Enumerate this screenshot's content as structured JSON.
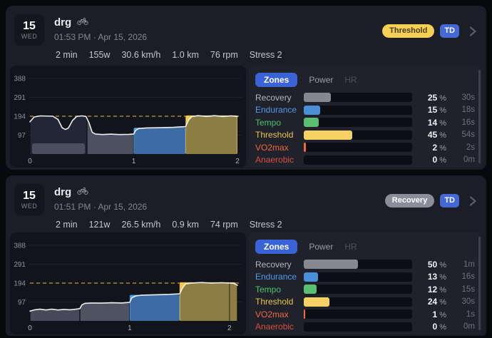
{
  "cards": [
    {
      "date": {
        "day": "15",
        "weekday": "WED"
      },
      "title": "drg",
      "activity_icon": "bicycle-icon",
      "subtitle": "01:53 PM · Apr 15, 2026",
      "badges": [
        {
          "label": "Threshold",
          "bg": "#f6cf55",
          "color": "#4c3d0d"
        },
        {
          "label": "TD",
          "bg": "#4468d6",
          "color": "#ffffff"
        }
      ],
      "stats": [
        "2 min",
        "155w",
        "30.6 km/h",
        "1.0 km",
        "76 rpm",
        "Stress 2"
      ],
      "tabs": [
        {
          "label": "Zones",
          "active": true
        },
        {
          "label": "Power",
          "active": false
        },
        {
          "label": "HR",
          "active": false,
          "enabled": false
        }
      ],
      "zones": [
        {
          "name": "Recovery",
          "label_color": "#b4b7bd",
          "bar_color": "#85888f",
          "pct": 25,
          "time": "30s"
        },
        {
          "name": "Endurance",
          "label_color": "#4f9ce8",
          "bar_color": "#4a90d9",
          "pct": 15,
          "time": "18s"
        },
        {
          "name": "Tempo",
          "label_color": "#4cc46a",
          "bar_color": "#5abf70",
          "pct": 14,
          "time": "16s"
        },
        {
          "name": "Threshold",
          "label_color": "#e8c84a",
          "bar_color": "#f5d263",
          "pct": 45,
          "time": "54s"
        },
        {
          "name": "VO2max",
          "label_color": "#f2683a",
          "bar_color": "#f06a3d",
          "pct": 2,
          "time": "2s"
        },
        {
          "name": "Anaerobic",
          "label_color": "#d94f3f",
          "bar_color": "#d94f3f",
          "pct": 0,
          "time": "0m"
        }
      ]
    },
    {
      "date": {
        "day": "15",
        "weekday": "WED"
      },
      "title": "drg",
      "activity_icon": "bicycle-icon",
      "subtitle": "01:51 PM · Apr 15, 2026",
      "badges": [
        {
          "label": "Recovery",
          "bg": "#8a8e98",
          "color": "#ffffff"
        },
        {
          "label": "TD",
          "bg": "#4468d6",
          "color": "#ffffff"
        }
      ],
      "stats": [
        "2 min",
        "121w",
        "26.5 km/h",
        "0.9 km",
        "74 rpm",
        "Stress 2"
      ],
      "tabs": [
        {
          "label": "Zones",
          "active": true
        },
        {
          "label": "Power",
          "active": false
        },
        {
          "label": "HR",
          "active": false,
          "enabled": false
        }
      ],
      "zones": [
        {
          "name": "Recovery",
          "label_color": "#b4b7bd",
          "bar_color": "#85888f",
          "pct": 50,
          "time": "1m"
        },
        {
          "name": "Endurance",
          "label_color": "#4f9ce8",
          "bar_color": "#4a90d9",
          "pct": 13,
          "time": "16s"
        },
        {
          "name": "Tempo",
          "label_color": "#4cc46a",
          "bar_color": "#5abf70",
          "pct": 12,
          "time": "15s"
        },
        {
          "name": "Threshold",
          "label_color": "#e8c84a",
          "bar_color": "#f5d263",
          "pct": 24,
          "time": "30s"
        },
        {
          "name": "VO2max",
          "label_color": "#f2683a",
          "bar_color": "#f06a3d",
          "pct": 1,
          "time": "1s"
        },
        {
          "name": "Anaerobic",
          "label_color": "#d94f3f",
          "bar_color": "#d94f3f",
          "pct": 0,
          "time": "0m"
        }
      ]
    }
  ],
  "chart_data": [
    {
      "type": "area",
      "x_unit": "min",
      "y_unit": "watts",
      "xlim": [
        0,
        2.0
      ],
      "ylim": [
        0,
        430
      ],
      "x_ticks": [
        0,
        1,
        2
      ],
      "y_ticks": [
        97,
        194,
        291,
        388
      ],
      "threshold": 194,
      "threshold_color": "#a8862e",
      "line_color": "#eceef0",
      "end_marker": null,
      "planned_under": [
        {
          "x0": 1.0,
          "x1": 1.5,
          "power": 135,
          "color": "#4da1e8"
        },
        {
          "x0": 1.5,
          "x1": 2.0,
          "power": 198,
          "color": "#f5c64c"
        }
      ],
      "planned_over": [
        {
          "x0": 0.02,
          "x1": 0.53,
          "power": 55,
          "color": "#4a4f5e"
        }
      ],
      "segments": [
        {
          "x0": 0,
          "x1": 0.55,
          "color": "#222636",
          "zone": "unclassified"
        },
        {
          "x0": 0.55,
          "x1": 1.0,
          "color": "#4d515f",
          "zone": "recovery"
        },
        {
          "x0": 1.0,
          "x1": 1.5,
          "color": "#3d6ba4",
          "zone": "endurance"
        },
        {
          "x0": 1.5,
          "x1": 2.0,
          "color": "#8c7d43",
          "zone": "threshold"
        }
      ],
      "line": [
        [
          0,
          165
        ],
        [
          0.04,
          190
        ],
        [
          0.1,
          196
        ],
        [
          0.22,
          194
        ],
        [
          0.27,
          178
        ],
        [
          0.31,
          135
        ],
        [
          0.34,
          126
        ],
        [
          0.37,
          133
        ],
        [
          0.41,
          172
        ],
        [
          0.45,
          193
        ],
        [
          0.5,
          196
        ],
        [
          0.54,
          193
        ],
        [
          0.57,
          160
        ],
        [
          0.6,
          112
        ],
        [
          0.63,
          103
        ],
        [
          0.7,
          100
        ],
        [
          0.78,
          102
        ],
        [
          0.86,
          100
        ],
        [
          0.95,
          101
        ],
        [
          1.0,
          103
        ],
        [
          1.02,
          122
        ],
        [
          1.05,
          131
        ],
        [
          1.12,
          134
        ],
        [
          1.25,
          135
        ],
        [
          1.38,
          137
        ],
        [
          1.5,
          141
        ],
        [
          1.53,
          175
        ],
        [
          1.56,
          192
        ],
        [
          1.62,
          197
        ],
        [
          1.7,
          193
        ],
        [
          1.78,
          197
        ],
        [
          1.86,
          192
        ],
        [
          1.94,
          196
        ],
        [
          2.0,
          193
        ]
      ]
    },
    {
      "type": "area",
      "x_unit": "min",
      "y_unit": "watts",
      "xlim": [
        0,
        2.08
      ],
      "ylim": [
        0,
        430
      ],
      "x_ticks": [
        0,
        1,
        2
      ],
      "y_ticks": [
        97,
        194,
        291,
        388
      ],
      "threshold": 194,
      "threshold_color": "#a8862e",
      "line_color": "#eceef0",
      "end_marker": 2.0,
      "planned_under": [
        {
          "x0": 1.0,
          "x1": 1.5,
          "power": 133,
          "color": "#4da1e8"
        },
        {
          "x0": 1.5,
          "x1": 2.06,
          "power": 198,
          "color": "#f5c64c"
        }
      ],
      "planned_over": [],
      "segments": [
        {
          "x0": 0,
          "x1": 0.5,
          "color": "#474b59",
          "zone": "recovery"
        },
        {
          "x0": 0.5,
          "x1": 1.0,
          "color": "#4f5361",
          "zone": "recovery"
        },
        {
          "x0": 1.0,
          "x1": 1.5,
          "color": "#3d6ba4",
          "zone": "endurance"
        },
        {
          "x0": 1.5,
          "x1": 2.08,
          "color": "#8c7d43",
          "zone": "threshold"
        }
      ],
      "line": [
        [
          0,
          50
        ],
        [
          0.05,
          57
        ],
        [
          0.1,
          60
        ],
        [
          0.16,
          56
        ],
        [
          0.22,
          60
        ],
        [
          0.28,
          56
        ],
        [
          0.34,
          59
        ],
        [
          0.4,
          57
        ],
        [
          0.46,
          60
        ],
        [
          0.5,
          63
        ],
        [
          0.52,
          82
        ],
        [
          0.55,
          90
        ],
        [
          0.62,
          92
        ],
        [
          0.72,
          91
        ],
        [
          0.82,
          93
        ],
        [
          0.92,
          92
        ],
        [
          1.0,
          95
        ],
        [
          1.02,
          118
        ],
        [
          1.06,
          128
        ],
        [
          1.12,
          132
        ],
        [
          1.25,
          134
        ],
        [
          1.4,
          136
        ],
        [
          1.5,
          139
        ],
        [
          1.53,
          170
        ],
        [
          1.56,
          190
        ],
        [
          1.62,
          194
        ],
        [
          1.72,
          197
        ],
        [
          1.82,
          194
        ],
        [
          1.92,
          196
        ],
        [
          2.0,
          194
        ],
        [
          2.04,
          193
        ],
        [
          2.08,
          183
        ]
      ]
    }
  ]
}
